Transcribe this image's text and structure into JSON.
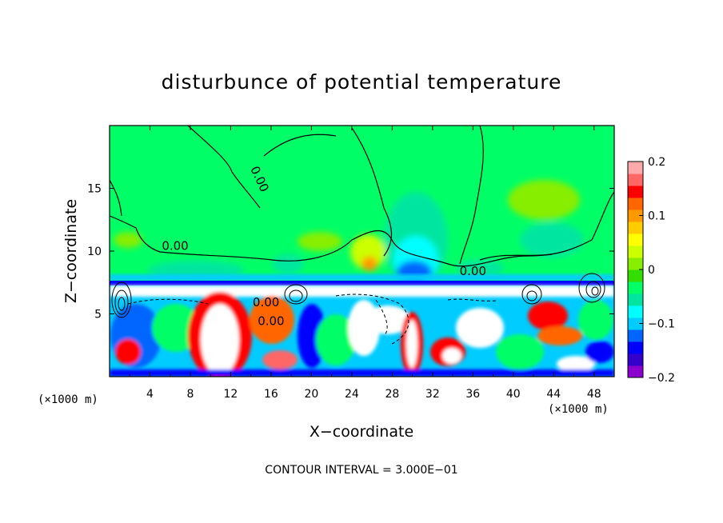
{
  "chart_data": {
    "type": "heatmap",
    "title": "disturbunce of potential temperature",
    "xlabel": "X−coordinate",
    "ylabel": "Z−coordinate",
    "x_unit": "(×1000 m)",
    "x_unit_right": "(×1000 m)",
    "xlim": [
      0,
      50
    ],
    "ylim": [
      0,
      20
    ],
    "x_ticks": [
      4,
      8,
      12,
      16,
      20,
      24,
      28,
      32,
      36,
      40,
      44,
      48
    ],
    "y_ticks": [
      5,
      10,
      15
    ],
    "colorbar": {
      "range": [
        -0.2,
        0.2
      ],
      "ticks": [
        0.2,
        0.1,
        0,
        -0.1,
        -0.2
      ],
      "tick_labels": [
        "0.2",
        "0.1",
        "0",
        "−0.1",
        "−0.2"
      ],
      "colors": [
        "#8b00cc",
        "#3300cc",
        "#0000ff",
        "#0066ff",
        "#00ccff",
        "#00ffff",
        "#00e6a0",
        "#00ff66",
        "#33dd00",
        "#88ee00",
        "#ccff00",
        "#ffff00",
        "#ffcc00",
        "#ff9900",
        "#ff6600",
        "#ff0000",
        "#ff6666",
        "#ffaaaa"
      ]
    },
    "contour_labels": [
      {
        "text": "0.00",
        "x": 14.5,
        "z": 15.6
      },
      {
        "text": "0.00",
        "x": 6.5,
        "z": 10.1
      },
      {
        "text": "0.00",
        "x": 36.0,
        "z": 8.1
      },
      {
        "text": "0.00",
        "x": 15.5,
        "z": 5.6
      },
      {
        "text": "0.00",
        "x": 16.0,
        "z": 4.1
      }
    ],
    "contour_interval_text": "CONTOUR INTERVAL = 3.000E−01"
  }
}
